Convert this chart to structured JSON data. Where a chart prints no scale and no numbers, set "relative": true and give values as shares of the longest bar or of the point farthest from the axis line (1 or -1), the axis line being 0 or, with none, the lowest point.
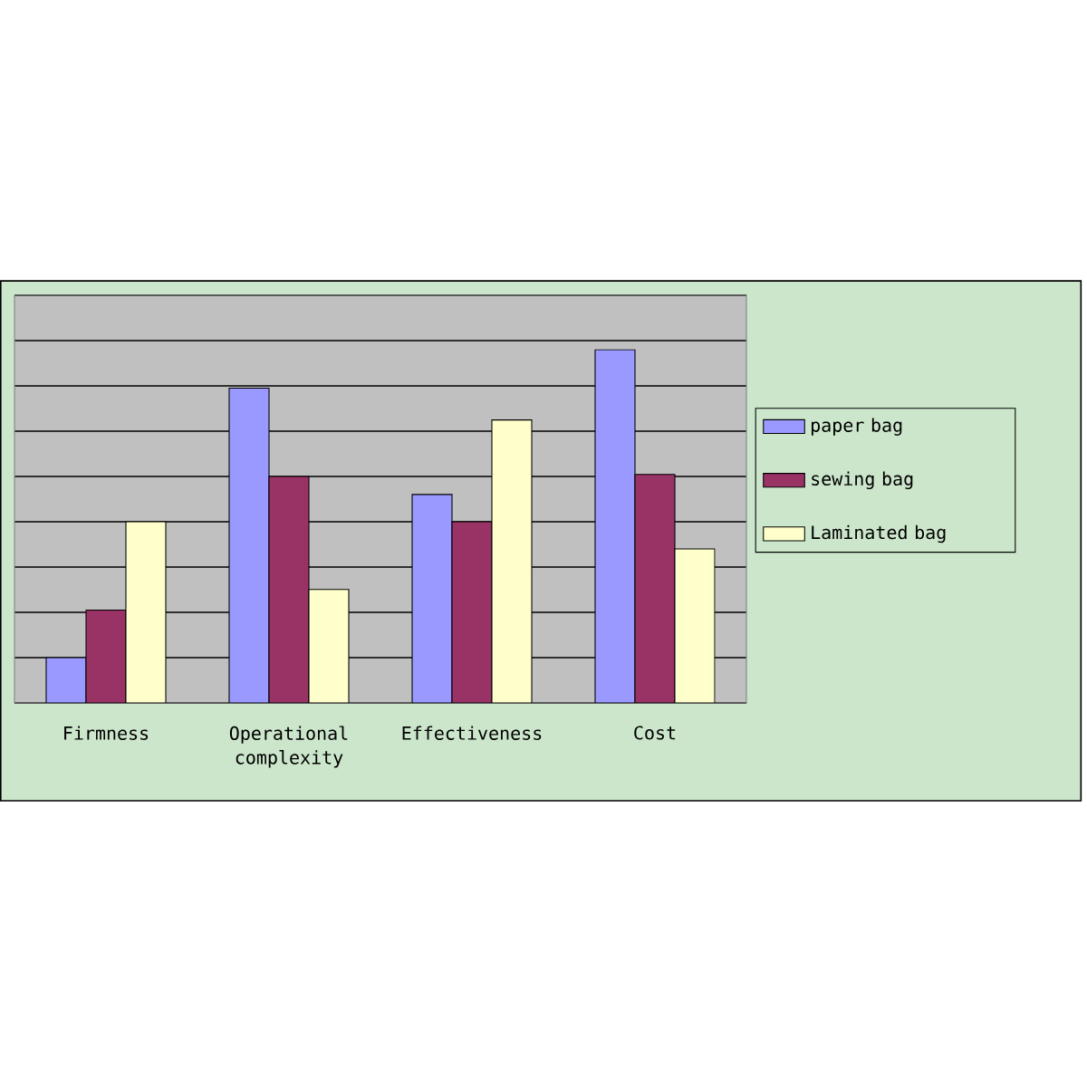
{
  "chart_data": {
    "type": "bar",
    "relative": true,
    "grid": "y",
    "legend": "right",
    "categories": [
      "Firmness",
      "Operational complexity",
      "Effectiveness",
      "Cost"
    ],
    "series": [
      {
        "name": "paper bag",
        "color": "#9999ff",
        "values": [
          0.128,
          0.891,
          0.59,
          1
        ]
      },
      {
        "name": "sewing bag",
        "color": "#993366",
        "values": [
          0.263,
          0.641,
          0.513,
          0.647
        ]
      },
      {
        "name": "Laminated bag",
        "color": "#ffffcc",
        "values": [
          0.513,
          0.321,
          0.801,
          0.436
        ]
      }
    ]
  }
}
